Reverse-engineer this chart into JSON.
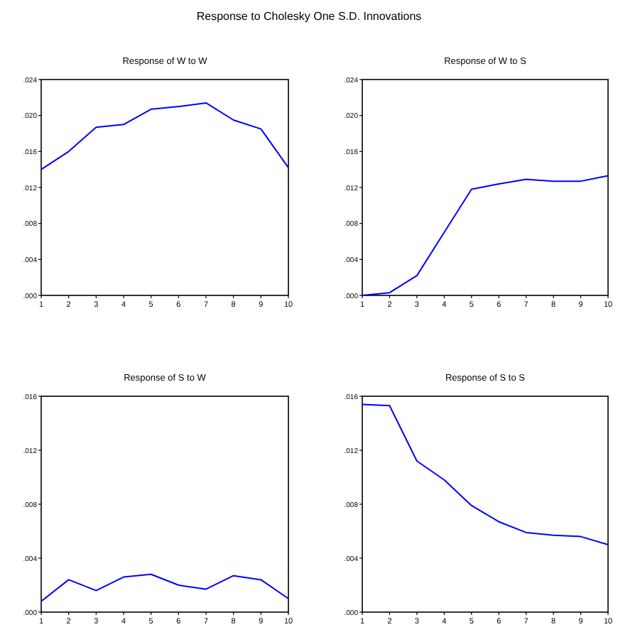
{
  "chart_data": [
    {
      "type": "line",
      "title": "Response of W to W",
      "annotations": [
        "Response to Cholesky One S.D. Innovations"
      ],
      "categories": [
        "1",
        "2",
        "3",
        "4",
        "5",
        "6",
        "7",
        "8",
        "9",
        "10"
      ],
      "ylim": [
        0,
        0.024
      ],
      "yticks": [
        {
          "value": 0,
          "label": ".000"
        },
        {
          "value": 0.004,
          "label": ".004"
        },
        {
          "value": 0.008,
          "label": ".008"
        },
        {
          "value": 0.012,
          "label": ".012"
        },
        {
          "value": 0.016,
          "label": ".016"
        },
        {
          "value": 0.02,
          "label": ".020"
        },
        {
          "value": 0.024,
          "label": ".024"
        }
      ],
      "grid": false,
      "marker": "none",
      "line_style": "solid",
      "series": [
        {
          "color": "#0000ff",
          "values": [
            0.014,
            0.016,
            0.0187,
            0.019,
            0.0207,
            0.021,
            0.0214,
            0.0195,
            0.0185,
            0.0142
          ]
        }
      ]
    },
    {
      "type": "line",
      "title": "Response of W to S",
      "categories": [
        "1",
        "2",
        "3",
        "4",
        "5",
        "6",
        "7",
        "8",
        "9",
        "10"
      ],
      "ylim": [
        0,
        0.024
      ],
      "yticks": [
        {
          "value": 0,
          "label": ".000"
        },
        {
          "value": 0.004,
          "label": ".004"
        },
        {
          "value": 0.008,
          "label": ".008"
        },
        {
          "value": 0.012,
          "label": ".012"
        },
        {
          "value": 0.016,
          "label": ".016"
        },
        {
          "value": 0.02,
          "label": ".020"
        },
        {
          "value": 0.024,
          "label": ".024"
        }
      ],
      "grid": false,
      "marker": "none",
      "line_style": "solid",
      "series": [
        {
          "color": "#0000ff",
          "values": [
            0.0,
            0.0003,
            0.0022,
            0.007,
            0.0118,
            0.0124,
            0.0129,
            0.0127,
            0.0127,
            0.0133
          ]
        }
      ]
    },
    {
      "type": "line",
      "title": "Response of S to W",
      "categories": [
        "1",
        "2",
        "3",
        "4",
        "5",
        "6",
        "7",
        "8",
        "9",
        "10"
      ],
      "ylim": [
        0,
        0.016
      ],
      "yticks": [
        {
          "value": 0,
          "label": ".000"
        },
        {
          "value": 0.004,
          "label": ".004"
        },
        {
          "value": 0.008,
          "label": ".008"
        },
        {
          "value": 0.012,
          "label": ".012"
        },
        {
          "value": 0.016,
          "label": ".016"
        }
      ],
      "grid": false,
      "marker": "none",
      "line_style": "solid",
      "series": [
        {
          "color": "#0000ff",
          "values": [
            0.0008,
            0.0024,
            0.0016,
            0.0026,
            0.0028,
            0.002,
            0.0017,
            0.0027,
            0.0024,
            0.001
          ]
        }
      ]
    },
    {
      "type": "line",
      "title": "Response of S to S",
      "categories": [
        "1",
        "2",
        "3",
        "4",
        "5",
        "6",
        "7",
        "8",
        "9",
        "10"
      ],
      "ylim": [
        0,
        0.016
      ],
      "yticks": [
        {
          "value": 0,
          "label": ".000"
        },
        {
          "value": 0.004,
          "label": ".004"
        },
        {
          "value": 0.008,
          "label": ".008"
        },
        {
          "value": 0.012,
          "label": ".012"
        },
        {
          "value": 0.016,
          "label": ".016"
        }
      ],
      "grid": false,
      "marker": "none",
      "line_style": "solid",
      "series": [
        {
          "color": "#0000ff",
          "values": [
            0.0154,
            0.0153,
            0.0112,
            0.0098,
            0.0079,
            0.0067,
            0.0059,
            0.0057,
            0.0056,
            0.005
          ]
        }
      ]
    }
  ]
}
